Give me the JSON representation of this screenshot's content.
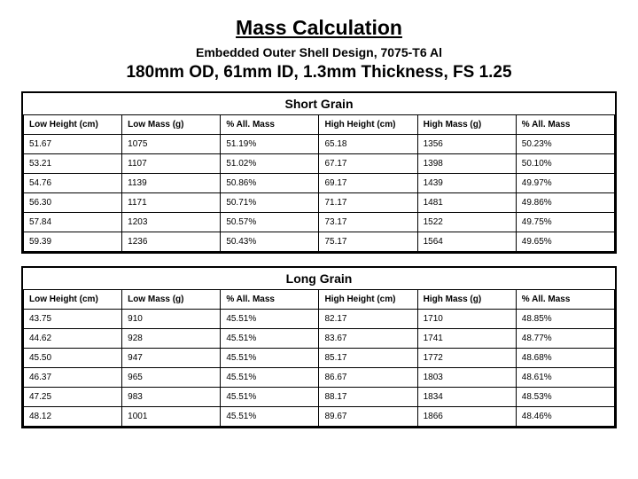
{
  "title": "Mass Calculation",
  "subtitle": "Embedded Outer Shell Design, 7075-T6 Al",
  "specline": "180mm OD, 61mm ID, 1.3mm Thickness, FS 1.25",
  "columns": [
    "Low Height (cm)",
    "Low Mass (g)",
    "% All. Mass",
    "High Height (cm)",
    "High Mass (g)",
    "% All. Mass"
  ],
  "t1": {
    "caption": "Short Grain",
    "r": [
      [
        "51.67",
        "1075",
        "51.19%",
        "65.18",
        "1356",
        "50.23%"
      ],
      [
        "53.21",
        "1107",
        "51.02%",
        "67.17",
        "1398",
        "50.10%"
      ],
      [
        "54.76",
        "1139",
        "50.86%",
        "69.17",
        "1439",
        "49.97%"
      ],
      [
        "56.30",
        "1171",
        "50.71%",
        "71.17",
        "1481",
        "49.86%"
      ],
      [
        "57.84",
        "1203",
        "50.57%",
        "73.17",
        "1522",
        "49.75%"
      ],
      [
        "59.39",
        "1236",
        "50.43%",
        "75.17",
        "1564",
        "49.65%"
      ]
    ]
  },
  "t2": {
    "caption": "Long Grain",
    "r": [
      [
        "43.75",
        "910",
        "45.51%",
        "82.17",
        "1710",
        "48.85%"
      ],
      [
        "44.62",
        "928",
        "45.51%",
        "83.67",
        "1741",
        "48.77%"
      ],
      [
        "45.50",
        "947",
        "45.51%",
        "85.17",
        "1772",
        "48.68%"
      ],
      [
        "46.37",
        "965",
        "45.51%",
        "86.67",
        "1803",
        "48.61%"
      ],
      [
        "47.25",
        "983",
        "45.51%",
        "88.17",
        "1834",
        "48.53%"
      ],
      [
        "48.12",
        "1001",
        "45.51%",
        "89.67",
        "1866",
        "48.46%"
      ]
    ]
  }
}
